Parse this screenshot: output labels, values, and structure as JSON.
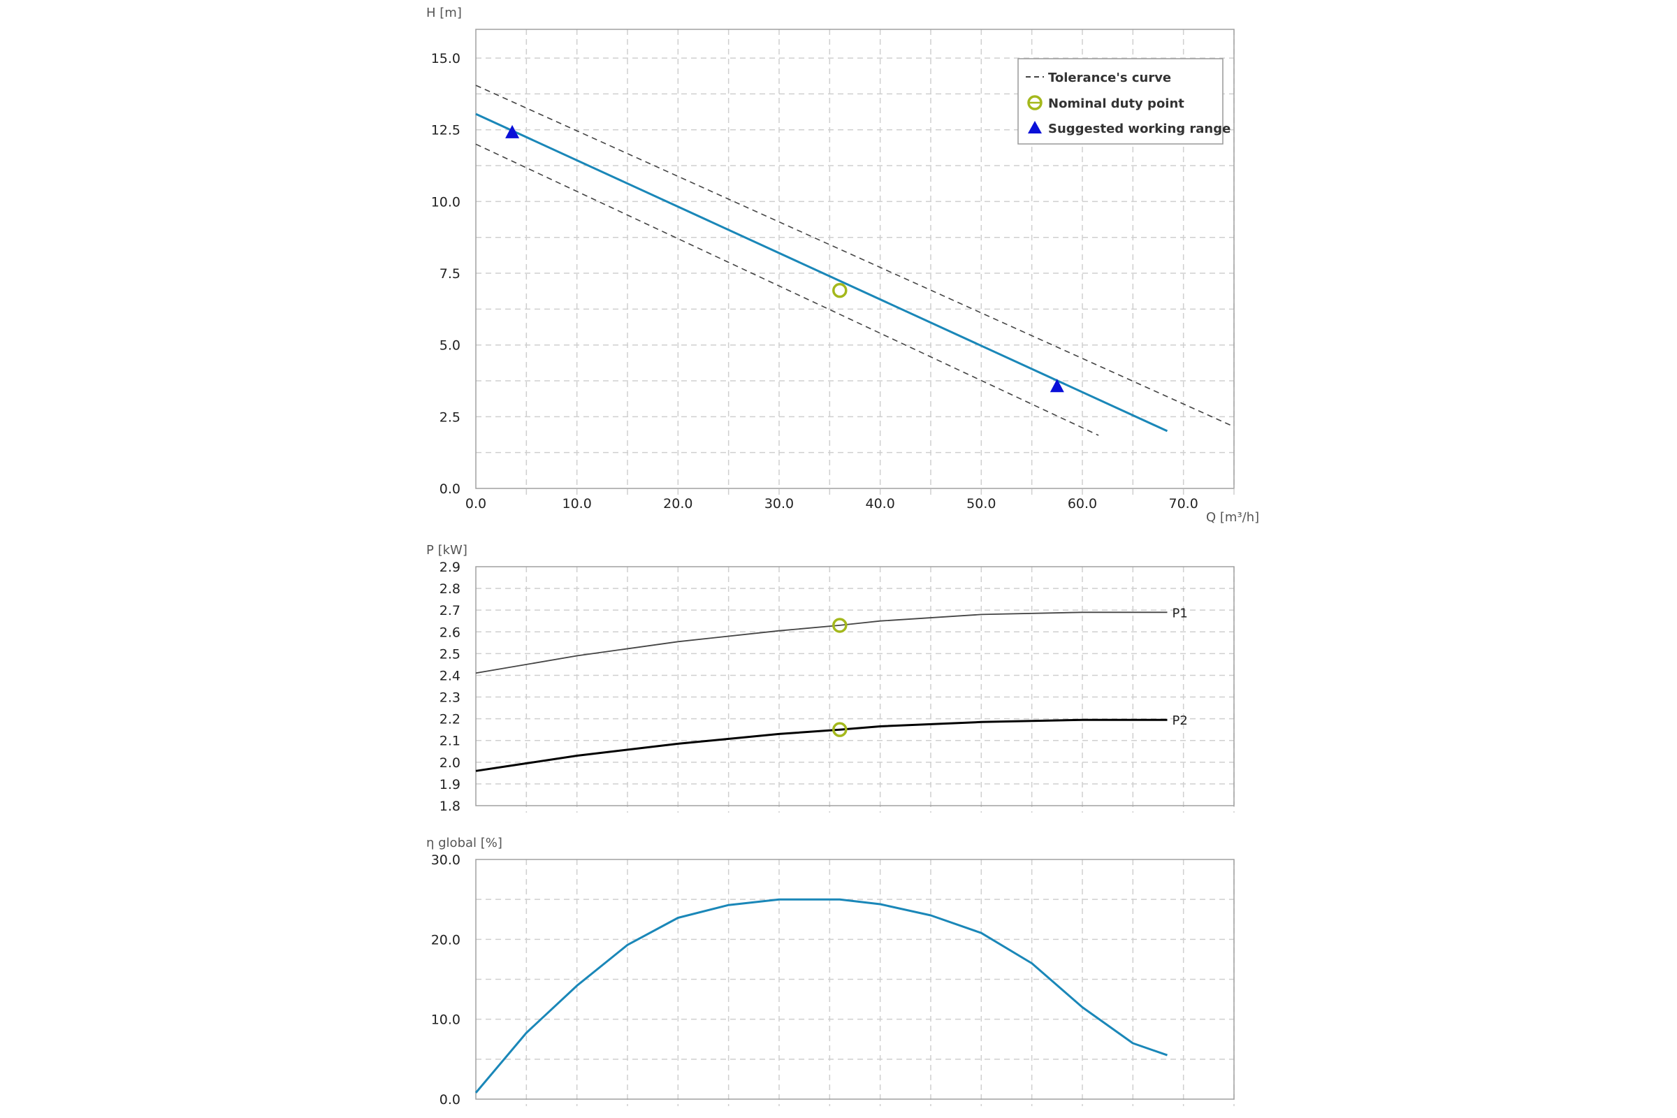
{
  "colors": {
    "curve": "#1a87b8",
    "tolerance": "#444444",
    "duty_point": "#a4b81c",
    "working_range": "#0a10d8",
    "p1": "#444444",
    "p2": "#000000",
    "grid": "#cfcfcf",
    "frame": "#a0a0a0"
  },
  "legend": {
    "tolerance": "Tolerance's curve",
    "duty": "Nominal duty point",
    "range": "Suggested working range"
  },
  "chart_data": [
    {
      "type": "line",
      "id": "head",
      "ylabel": "H [m]",
      "xlabel": "Q [m³/h]",
      "xlim": [
        0,
        75
      ],
      "ylim": [
        0,
        16
      ],
      "x_ticks": [
        "0.0",
        "10.0",
        "20.0",
        "30.0",
        "40.0",
        "50.0",
        "60.0",
        "70.0"
      ],
      "y_ticks": [
        "0.0",
        "2.5",
        "5.0",
        "7.5",
        "10.0",
        "12.5",
        "15.0"
      ],
      "grid": true,
      "legend_position": "top-right",
      "series": [
        {
          "name": "Curve",
          "x": [
            0,
            68.4
          ],
          "y": [
            13.05,
            2.0
          ]
        },
        {
          "name": "Tolerance's curve (upper)",
          "x": [
            0,
            75.0
          ],
          "y": [
            14.05,
            2.15
          ]
        },
        {
          "name": "Tolerance's curve (lower)",
          "x": [
            0,
            61.6
          ],
          "y": [
            12.0,
            1.85
          ]
        }
      ],
      "duty_point": {
        "x": 36.0,
        "y": 6.9
      },
      "working_range": [
        {
          "x": 3.6,
          "y": 12.4
        },
        {
          "x": 57.5,
          "y": 3.55
        }
      ]
    },
    {
      "type": "line",
      "id": "power",
      "ylabel": "P [kW]",
      "xlim": [
        0,
        75
      ],
      "ylim": [
        1.8,
        2.9
      ],
      "y_ticks": [
        "1.8",
        "1.9",
        "2.0",
        "2.1",
        "2.2",
        "2.3",
        "2.4",
        "2.5",
        "2.6",
        "2.7",
        "2.8",
        "2.9"
      ],
      "grid": true,
      "series": [
        {
          "name": "P1",
          "x": [
            0,
            10,
            20,
            30,
            36,
            40,
            50,
            60,
            68.4
          ],
          "y": [
            2.41,
            2.49,
            2.555,
            2.605,
            2.63,
            2.65,
            2.68,
            2.69,
            2.69
          ]
        },
        {
          "name": "P2",
          "x": [
            0,
            10,
            20,
            30,
            36,
            40,
            50,
            60,
            68.4
          ],
          "y": [
            1.96,
            2.03,
            2.085,
            2.13,
            2.15,
            2.165,
            2.185,
            2.195,
            2.195
          ]
        }
      ],
      "duty_points": [
        {
          "x": 36.0,
          "y": 2.63
        },
        {
          "x": 36.0,
          "y": 2.15
        }
      ]
    },
    {
      "type": "line",
      "id": "efficiency",
      "ylabel": "η global [%]",
      "xlim": [
        0,
        75
      ],
      "ylim": [
        0,
        30
      ],
      "y_ticks": [
        "0.0",
        "10.0",
        "20.0",
        "30.0"
      ],
      "grid": true,
      "series": [
        {
          "name": "η global",
          "x": [
            0,
            5,
            10,
            15,
            20,
            25,
            30,
            33,
            36,
            40,
            45,
            50,
            55,
            60,
            65,
            68.4
          ],
          "y": [
            0.8,
            8.3,
            14.2,
            19.3,
            22.7,
            24.3,
            25.0,
            25.0,
            25.0,
            24.4,
            23.0,
            20.8,
            17.0,
            11.5,
            7.0,
            5.5
          ]
        }
      ]
    }
  ]
}
